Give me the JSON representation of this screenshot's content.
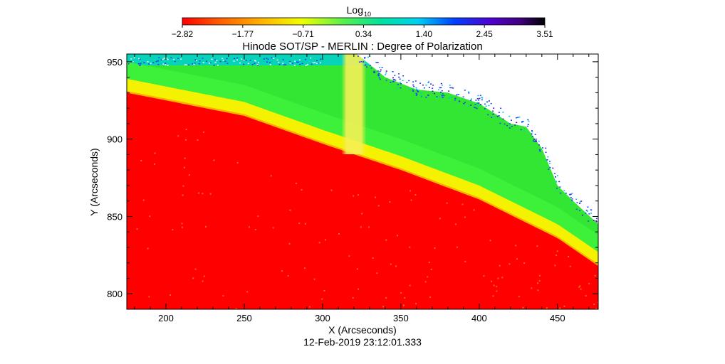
{
  "chart_data": {
    "type": "heatmap",
    "title": "Hinode SOT/SP - MERLIN : Degree of Polarization",
    "subtitle": "12-Feb-2019 23:12:01.333",
    "xlabel": "X (Arcseconds)",
    "ylabel": "Y (Arcseconds)",
    "xlim": [
      175,
      476
    ],
    "ylim": [
      790,
      955
    ],
    "x_ticks": [
      200,
      250,
      300,
      350,
      400,
      450
    ],
    "y_ticks": [
      800,
      850,
      900,
      950
    ],
    "colorbar": {
      "label": "Log",
      "label_subscript": "10",
      "colormap": "rainbow reversed (red low → black high)",
      "range": [
        -2.82,
        3.51
      ],
      "ticks": [
        "-2.82",
        "-1.77",
        "-0.71",
        "0.34",
        "1.40",
        "2.45",
        "3.51"
      ]
    },
    "regions": [
      {
        "name": "solar disk",
        "approx_log_value": -2.82,
        "color": "#ff0000",
        "limb_y_at_x": {
          "175": 930,
          "250": 915,
          "300": 897,
          "350": 880,
          "400": 861,
          "450": 836,
          "476": 818
        }
      },
      {
        "name": "off-limb near limb",
        "approx_log_value": -1.5,
        "color": "#ffff00"
      },
      {
        "name": "off-limb corona",
        "approx_log_value": -0.5,
        "color": "#3cf03c"
      },
      {
        "name": "outer corona noise",
        "approx_log_value": 0.34,
        "color": "#00d8d8"
      },
      {
        "name": "missing data",
        "color": "#ffffff",
        "boundary_y_at_x": {
          "322": 955,
          "340": 940,
          "360": 932,
          "380": 930,
          "400": 923,
          "420": 910,
          "430": 908,
          "440": 894,
          "450": 870,
          "460": 860,
          "476": 845
        }
      }
    ],
    "features": [
      {
        "name": "vertical bright strip",
        "x_range": [
          312,
          328
        ],
        "color": "#f2f24a"
      }
    ],
    "grid": false,
    "legend": "none"
  }
}
